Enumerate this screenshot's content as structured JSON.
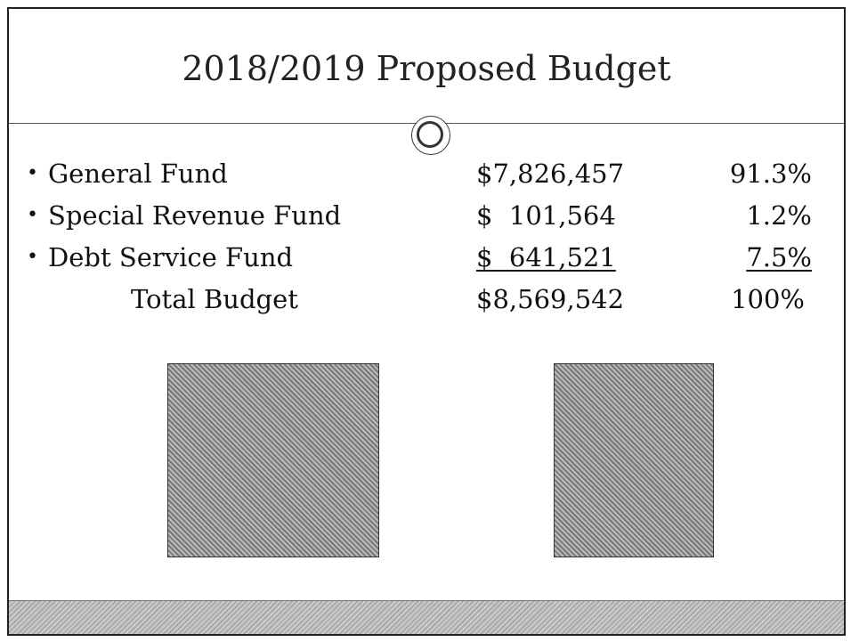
{
  "slide": {
    "title": "2018/2019 Proposed Budget",
    "items": [
      {
        "label": "General Fund",
        "amount": "$7,826,457",
        "percent": "91.3%"
      },
      {
        "label": "Special Revenue Fund",
        "amount": "$  101,564",
        "percent": "1.2%"
      },
      {
        "label": "Debt Service Fund",
        "amount": "$  641,521",
        "percent": "7.5%"
      }
    ],
    "total": {
      "label": "Total Budget",
      "amount": "$8,569,542",
      "percent": "100%"
    }
  }
}
